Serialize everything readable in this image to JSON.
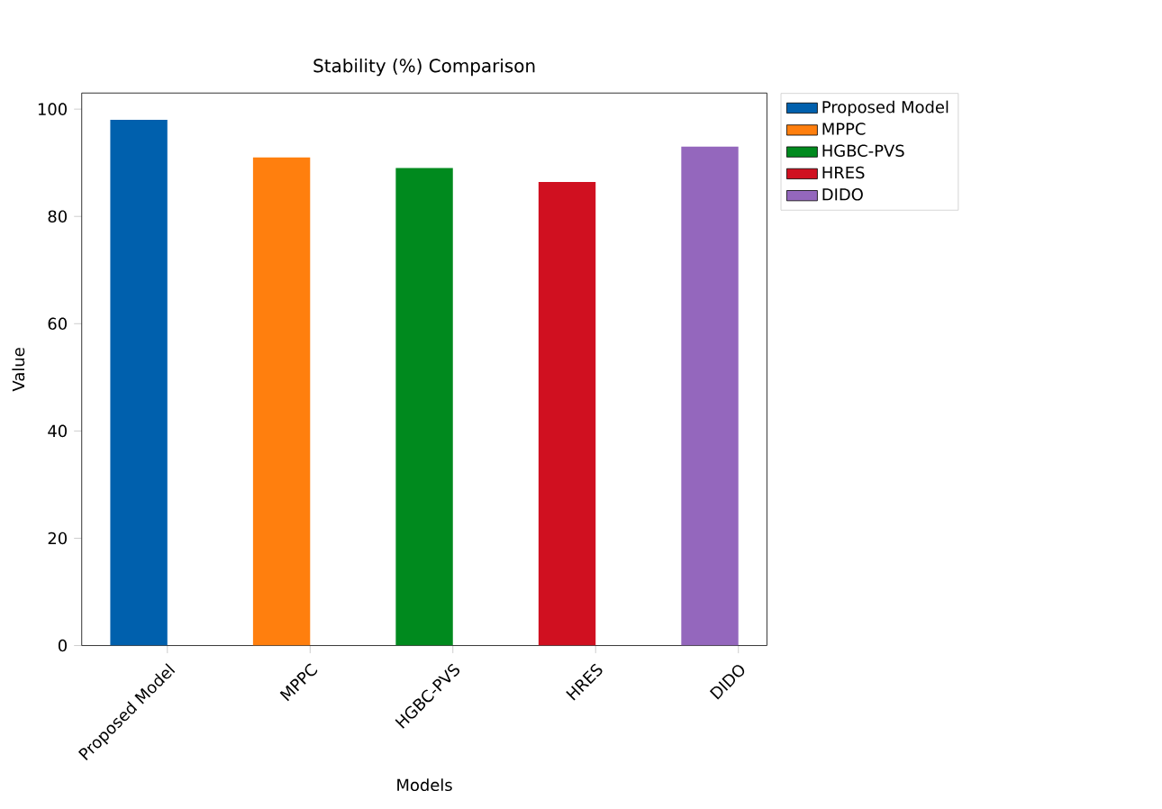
{
  "chart_data": {
    "type": "bar",
    "title": "Stability (%) Comparison",
    "xlabel": "Models",
    "ylabel": "Value",
    "categories": [
      "Proposed Model",
      "MPPC",
      "HGBC-PVS",
      "HRES",
      "DIDO"
    ],
    "series": [
      {
        "name": "Proposed Model",
        "color": "#0060ad",
        "values": [
          98,
          null,
          null,
          null,
          null
        ]
      },
      {
        "name": "MPPC",
        "color": "#ff7f0e",
        "values": [
          null,
          91,
          null,
          null,
          null
        ]
      },
      {
        "name": "HGBC-PVS",
        "color": "#008a1e",
        "values": [
          null,
          null,
          89,
          null,
          null
        ]
      },
      {
        "name": "HRES",
        "color": "#d01020",
        "values": [
          null,
          null,
          null,
          86.4,
          null
        ]
      },
      {
        "name": "DIDO",
        "color": "#9467bd",
        "values": [
          null,
          null,
          null,
          null,
          93
        ]
      }
    ],
    "ylim": [
      0,
      103
    ],
    "yticks": [
      0,
      20,
      40,
      60,
      80,
      100
    ],
    "legend": "top right"
  }
}
